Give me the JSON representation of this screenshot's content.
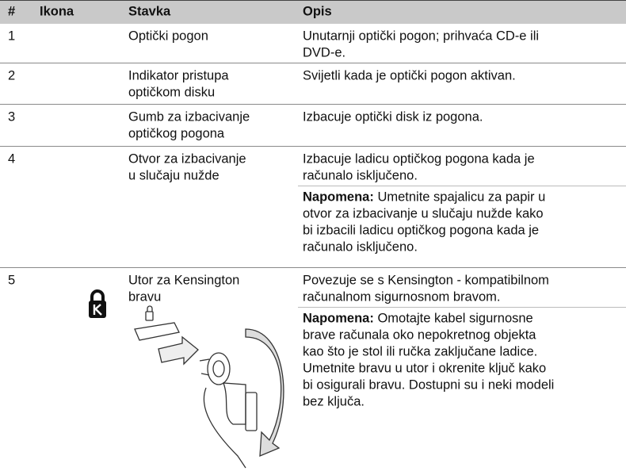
{
  "table": {
    "header": [
      "#",
      "Ikona",
      "Stavka",
      "Opis"
    ],
    "rows": [
      {
        "num": "1",
        "item": [
          "Optički pogon"
        ],
        "description": [
          {
            "lines": [
              "Unutarnji optički pogon; prihvaća CD-e ili",
              "DVD-e."
            ]
          }
        ]
      },
      {
        "num": "2",
        "item": [
          "Indikator pristupa",
          "optičkom disku"
        ],
        "description": [
          {
            "lines": [
              "Svijetli kada je optički pogon aktivan."
            ]
          }
        ]
      },
      {
        "num": "3",
        "item": [
          "Gumb za izbacivanje",
          "optičkog pogona"
        ],
        "description": [
          {
            "lines": [
              "Izbacuje optički disk iz pogona."
            ]
          }
        ]
      },
      {
        "num": "4",
        "item": [
          "Otvor za izbacivanje",
          "u slučaju nužde"
        ],
        "description": [
          {
            "lines": [
              "Izbacuje ladicu optičkog pogona kada je",
              "računalo isključeno."
            ]
          },
          {
            "label": "Napomena:",
            "lines": [
              "Umetnite spajalicu za papir u",
              "otvor za izbacivanje u slučaju nužde kako",
              "bi izbacili ladicu optičkog pogona kada je",
              "računalo isključeno."
            ]
          }
        ]
      },
      {
        "num": "5",
        "item": [
          "Utor za Kensington",
          "bravu"
        ],
        "description": [
          {
            "lines": [
              "Povezuje se s Kensington - kompatibilnom",
              "računalnom sigurnosnom bravom."
            ]
          },
          {
            "label": "Napomena:",
            "lines": [
              "Omotajte kabel sigurnosne",
              "brave računala oko nepokretnog objekta",
              "kao što je stol ili ručka zaključane ladice.",
              "Umetnite bravu u utor i okrenite ključ kako",
              "bi osigurali bravu. Dostupni su i neki modeli",
              "bez ključa."
            ]
          }
        ]
      }
    ]
  }
}
